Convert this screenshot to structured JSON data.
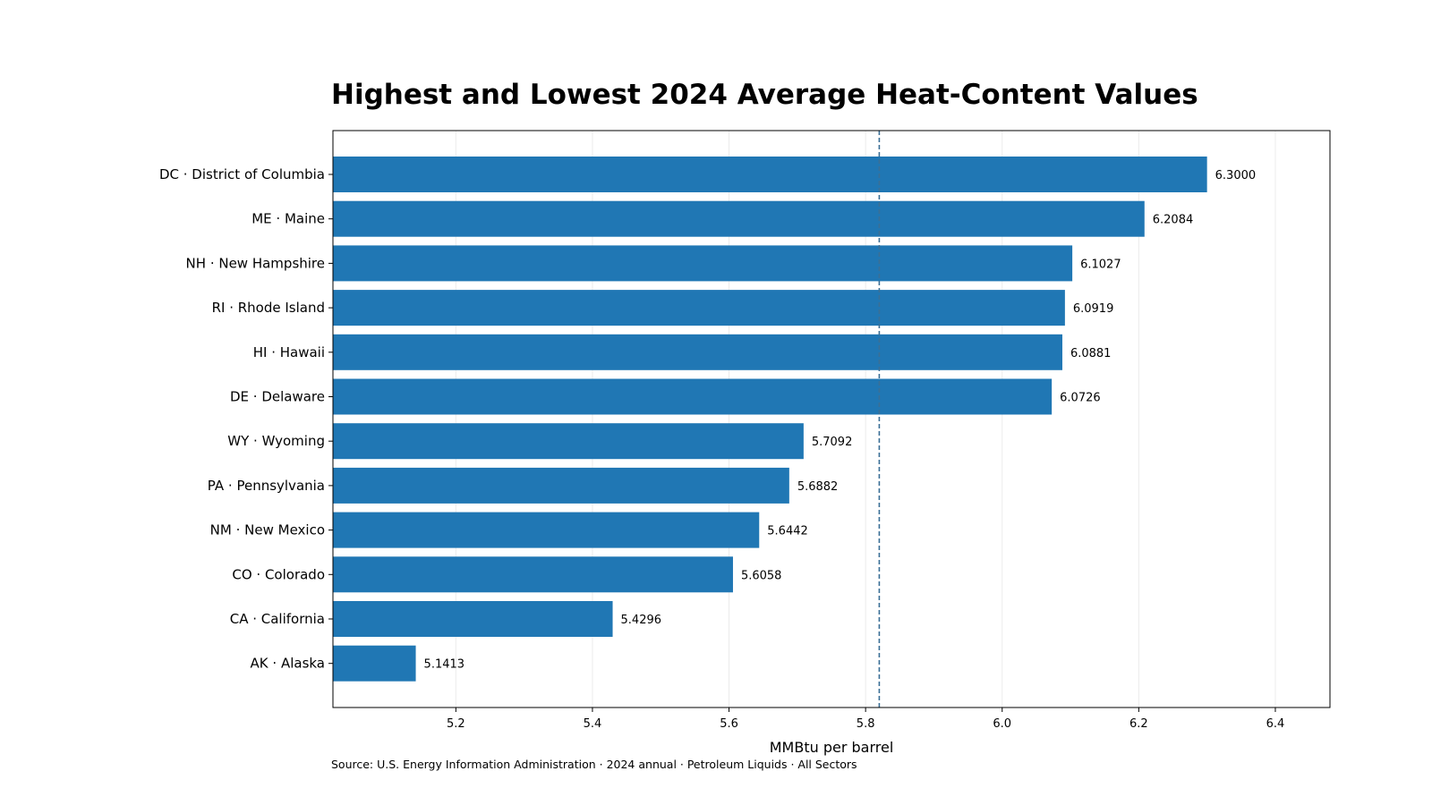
{
  "chart_data": {
    "type": "bar",
    "orientation": "horizontal",
    "title": "Highest and Lowest 2024 Average Heat-Content Values",
    "xlabel": "MMBtu per barrel",
    "ylabel": "",
    "xlim": [
      5.02,
      6.48
    ],
    "xticks": [
      "5.2",
      "5.4",
      "5.6",
      "5.8",
      "6.0",
      "6.2",
      "6.4"
    ],
    "grid": "vertical",
    "reference_line": {
      "value": 5.82,
      "style": "dashed"
    },
    "categories": [
      "DC · District of Columbia",
      "ME · Maine",
      "NH · New Hampshire",
      "RI · Rhode Island",
      "HI · Hawaii",
      "DE · Delaware",
      "WY · Wyoming",
      "PA · Pennsylvania",
      "NM · New Mexico",
      "CO · Colorado",
      "CA · California",
      "AK · Alaska"
    ],
    "values": [
      6.3,
      6.2084,
      6.1027,
      6.0919,
      6.0881,
      6.0726,
      5.7092,
      5.6882,
      5.6442,
      5.6058,
      5.4296,
      5.1413
    ],
    "value_labels": [
      "6.3000",
      "6.2084",
      "6.1027",
      "6.0919",
      "6.0881",
      "6.0726",
      "5.7092",
      "5.6882",
      "5.6442",
      "5.6058",
      "5.4296",
      "5.1413"
    ],
    "colors": {
      "bar": "#2077b4",
      "reference_line": "#3a6f96",
      "grid": "#ececec",
      "axis": "#000000"
    },
    "source": "Source: U.S. Energy Information Administration · 2024 annual · Petroleum Liquids · All Sectors"
  }
}
